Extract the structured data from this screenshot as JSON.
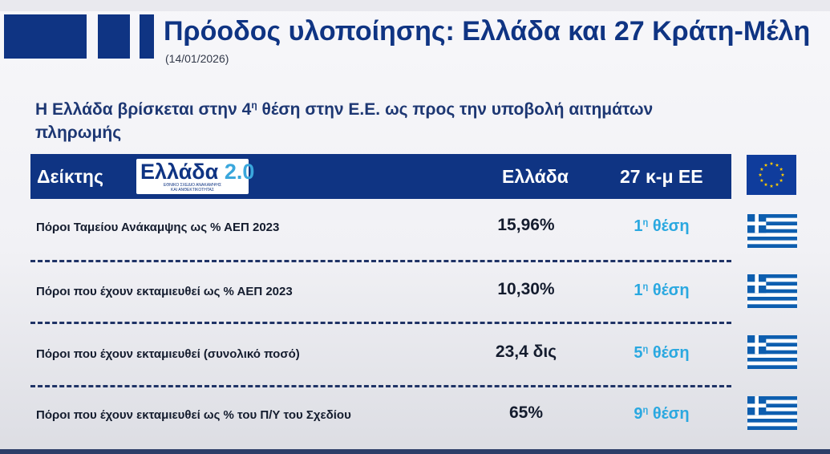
{
  "header": {
    "title": "Πρόοδος υλοποίησης: Ελλάδα και 27 Κράτη-Μέλη",
    "date": "(14/01/2026)"
  },
  "subtitle": {
    "before": "Η Ελλάδα βρίσκεται στην 4",
    "sup": "η",
    "after": " θέση στην Ε.Ε. ως προς την υποβολή αιτημάτων πληρωμής"
  },
  "table": {
    "headers": {
      "indicator": "Δείκτης",
      "greece": "Ελλάδα",
      "eu": "27 κ-μ ΕΕ"
    },
    "logo": {
      "main": "Ελλάδα",
      "number": "2.0",
      "line1": "ΕΘΝΙΚΟ ΣΧΕΔΙΟ ΑΝΑΚΑΜΨΗΣ",
      "line2": "ΚΑΙ ΑΝΘΕΚΤΙΚΟΤΗΤΑΣ"
    },
    "rows": [
      {
        "label": "Πόροι Ταμείου Ανάκαμψης ως % ΑΕΠ 2023",
        "value": "15,96%",
        "rank_num": "1",
        "rank_sup": "η",
        "rank_text": " θέση"
      },
      {
        "label": "Πόροι που έχουν εκταμιευθεί ως % ΑΕΠ 2023",
        "value": "10,30%",
        "rank_num": "1",
        "rank_sup": "η",
        "rank_text": " θέση"
      },
      {
        "label": "Πόροι που έχουν εκταμιευθεί (συνολικό ποσό)",
        "value": "23,4 δις",
        "rank_num": "5",
        "rank_sup": "η",
        "rank_text": " θέση"
      },
      {
        "label": "Πόροι που έχουν εκταμιευθεί ως % του Π/Υ του Σχεδίου",
        "value": "65%",
        "rank_num": "9",
        "rank_sup": "η",
        "rank_text": " θέση"
      }
    ]
  },
  "icons": {
    "eu_flag": "eu-flag-icon",
    "greek_flag": "greek-flag-icon"
  },
  "colors": {
    "primary_blue": "#0f3483",
    "rank_blue": "#2aa8e0",
    "eu_star": "#ffcc00"
  }
}
